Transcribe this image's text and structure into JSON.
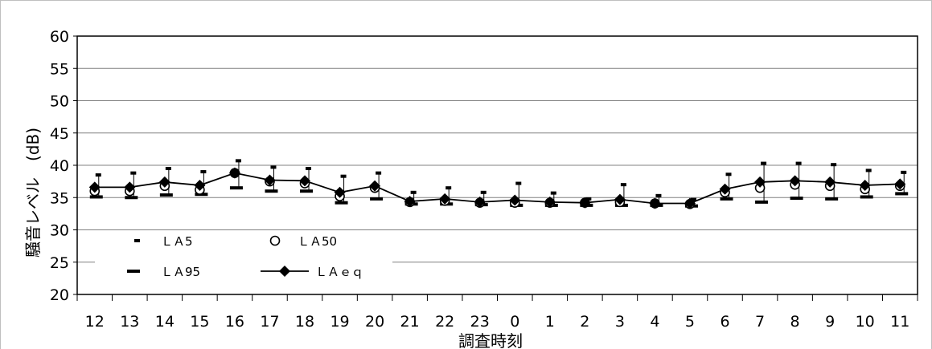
{
  "chart_data": {
    "type": "line",
    "ylabel": "騒音レベル　(dB)",
    "xlabel": "調査時刻",
    "ylim": [
      20,
      60
    ],
    "yticks": [
      20,
      25,
      30,
      35,
      40,
      45,
      50,
      55,
      60
    ],
    "grid": true,
    "legend_placement": "bottom-left",
    "categories": [
      "12",
      "13",
      "14",
      "15",
      "16",
      "17",
      "18",
      "19",
      "20",
      "21",
      "22",
      "23",
      "0",
      "1",
      "2",
      "3",
      "4",
      "5",
      "6",
      "7",
      "8",
      "9",
      "10",
      "11"
    ],
    "series": [
      {
        "name": "ＬＡ5",
        "marker": "dash-short",
        "values": [
          38.5,
          38.8,
          39.5,
          39,
          40.7,
          39.7,
          39.5,
          38.3,
          38.8,
          35.8,
          36.5,
          35.8,
          37.2,
          35.7,
          34.8,
          37,
          35.3,
          34.7,
          38.6,
          40.3,
          40.3,
          40.1,
          39.2,
          38.9
        ]
      },
      {
        "name": "ＬＡ50",
        "marker": "circle-open",
        "values": [
          36,
          36,
          36.8,
          36.2,
          38.8,
          37.5,
          37.2,
          35.2,
          36.5,
          34.3,
          34.5,
          34.2,
          34.2,
          34.2,
          34.2,
          34.3,
          34.1,
          34,
          35.8,
          36.5,
          37,
          36.8,
          36.3,
          36.8
        ]
      },
      {
        "name": "ＬＡ95",
        "marker": "dash-long",
        "values": [
          35.1,
          35,
          35.4,
          35.5,
          36.5,
          36,
          36,
          34.2,
          34.8,
          34,
          34,
          33.9,
          33.8,
          33.8,
          33.8,
          33.8,
          33.8,
          33.7,
          34.8,
          34.3,
          34.9,
          34.8,
          35.1,
          35.6
        ]
      },
      {
        "name": "ＬＡｅｑ",
        "marker": "diamond-filled-line",
        "values": [
          36.6,
          36.6,
          37.4,
          36.9,
          38.8,
          37.7,
          37.6,
          35.8,
          36.8,
          34.4,
          34.8,
          34.3,
          34.6,
          34.3,
          34.2,
          34.7,
          34.1,
          34.1,
          36.3,
          37.4,
          37.6,
          37.4,
          36.9,
          37.1
        ]
      }
    ]
  }
}
